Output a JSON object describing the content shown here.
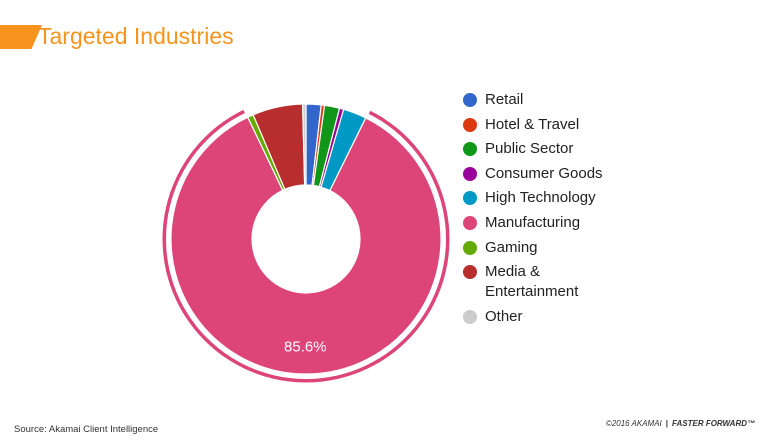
{
  "page": {
    "title": "Targeted Industries",
    "source": "Source: Akamai Client Intelligence",
    "footer_copyright": "©2016 AKAMAI",
    "footer_separator": "|",
    "footer_brand": "FASTER FORWARD™"
  },
  "colors": {
    "accent": "#f7941d"
  },
  "chart_data": {
    "type": "pie",
    "variant": "donut",
    "title": "Targeted Industries",
    "legend_position": "right",
    "highlighted": "Manufacturing",
    "categories": [
      "Retail",
      "Hotel & Travel",
      "Public Sector",
      "Consumer Goods",
      "High Technology",
      "Manufacturing",
      "Gaming",
      "Media & Entertainment",
      "Other"
    ],
    "legend_labels": [
      "Retail",
      "Hotel & Travel",
      "Public Sector",
      "Consumer Goods",
      "High Technology",
      "Manufacturing",
      "Gaming",
      "Media & Entertainment",
      "Other"
    ],
    "values": [
      1.8,
      0.4,
      1.8,
      0.5,
      2.8,
      85.6,
      0.7,
      6.0,
      0.4
    ],
    "colors": [
      "#3366cc",
      "#dc3912",
      "#109618",
      "#990099",
      "#0099c6",
      "#dd4477",
      "#66aa00",
      "#b82e2e",
      "#cccccc"
    ],
    "data_labels": [
      {
        "category": "Manufacturing",
        "text": "85.6%"
      }
    ]
  }
}
